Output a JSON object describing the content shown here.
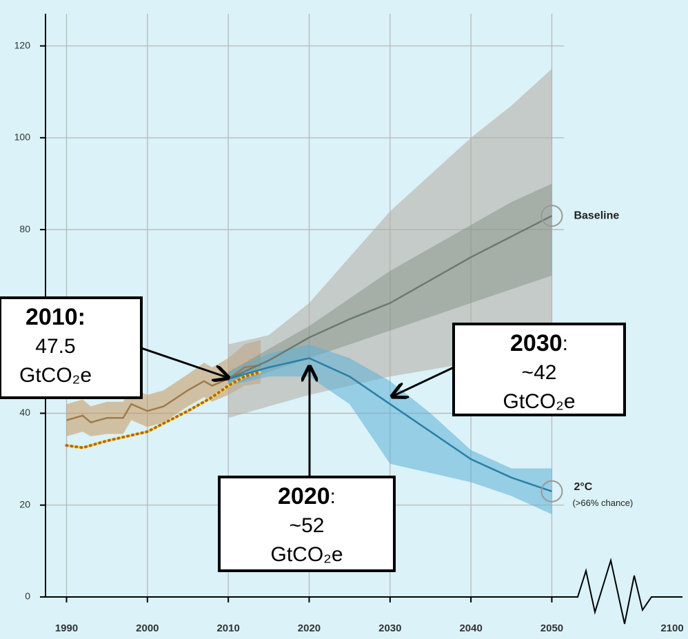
{
  "chart_data": {
    "type": "line",
    "xlim": [
      1987.4,
      2053.2
    ],
    "ylim": [
      0,
      127
    ],
    "xticks": [
      1990,
      2000,
      2010,
      2020,
      2030,
      2040,
      2050
    ],
    "yticks": [
      0,
      20,
      40,
      80,
      100,
      120
    ],
    "x_break_label": "2100",
    "grid": true,
    "series": [
      {
        "color": "#a07a4a",
        "band_color": "#c9975c",
        "x": [
          1990,
          1992,
          1993,
          1995,
          1997,
          1998,
          2000,
          2002,
          2005,
          2007,
          2008,
          2010,
          2012,
          2014
        ],
        "values": [
          38.5,
          39.5,
          38,
          39,
          39,
          42,
          40.5,
          41.5,
          45,
          47,
          46,
          47.5,
          50,
          50.5
        ],
        "lower": [
          35,
          36,
          35,
          35.5,
          35.5,
          38.5,
          37,
          38,
          41.5,
          43.5,
          42.5,
          44,
          46,
          46.5
        ],
        "upper": [
          42,
          43,
          41.5,
          42.5,
          42.5,
          45.5,
          44,
          45,
          48.5,
          51,
          50,
          52,
          55,
          56
        ]
      },
      {
        "color": "#b5651d",
        "line2_color": "#f5dc3c",
        "x": [
          1990,
          1992,
          1995,
          2000,
          2005,
          2008,
          2010,
          2012,
          2014
        ],
        "values": [
          33,
          32.5,
          34,
          36,
          40.5,
          43.5,
          46,
          48,
          49
        ]
      },
      {
        "name": "Baseline",
        "color": "#6b7a6e",
        "band_color": "#b5aca0",
        "x": [
          2010,
          2015,
          2020,
          2025,
          2030,
          2040,
          2045,
          2050
        ],
        "values": [
          47.5,
          51.5,
          56.5,
          60.5,
          64,
          74,
          78.5,
          83
        ],
        "lower": [
          39,
          41.5,
          44,
          46,
          48,
          51,
          52,
          53
        ],
        "upper": [
          55,
          57,
          64,
          74,
          84,
          100,
          107,
          115
        ],
        "inner_lower": [
          46,
          49,
          52,
          55,
          58,
          64,
          67,
          70
        ],
        "inner_upper": [
          49,
          54,
          59,
          65,
          71,
          81,
          86,
          90
        ]
      },
      {
        "name": "2°C",
        "subtitle": "(>66% chance)",
        "color": "#2a7fa6",
        "band_color": "#5db0d6",
        "x": [
          2010,
          2015,
          2020,
          2025,
          2030,
          2035,
          2040,
          2045,
          2050
        ],
        "values": [
          47.5,
          50,
          52,
          48,
          42,
          36,
          30,
          26,
          23
        ],
        "lower": [
          46,
          48,
          48,
          42,
          29,
          27,
          25,
          22,
          18
        ],
        "upper": [
          49,
          53,
          55,
          52,
          47,
          40,
          32,
          28,
          28
        ]
      }
    ],
    "annotations": [
      {
        "head": "2010:",
        "value": "47.5",
        "unit": "GtCO₂e"
      },
      {
        "head": "2020",
        "sep": ":",
        "value": "~52",
        "unit": "GtCO₂e"
      },
      {
        "head": "2030",
        "sep": ":",
        "value": "~42",
        "unit": "GtCO₂e"
      }
    ]
  }
}
